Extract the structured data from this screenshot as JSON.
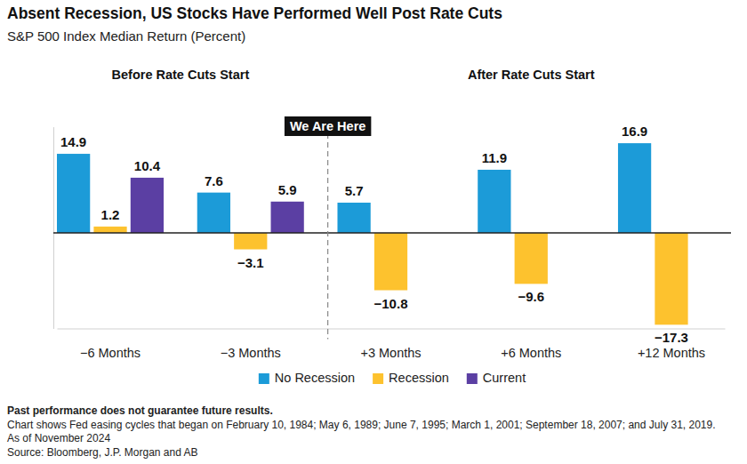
{
  "chart_data": {
    "type": "bar",
    "title": "Absent Recession, US Stocks Have Performed Well Post Rate Cuts",
    "subtitle": "S&P 500 Index Median Return (Percent)",
    "section_labels": [
      "Before Rate Cuts Start",
      "After Rate Cuts Start"
    ],
    "annotation": "We Are Here",
    "categories": [
      "−6 Months",
      "−3 Months",
      "+3 Months",
      "+6 Months",
      "+12 Months"
    ],
    "series": [
      {
        "name": "No Recession",
        "color": "#1c9bd8",
        "values": [
          14.9,
          7.6,
          5.7,
          11.9,
          16.9
        ]
      },
      {
        "name": "Recession",
        "color": "#fdc22e",
        "values": [
          1.2,
          -3.1,
          -10.8,
          -9.6,
          -17.3
        ],
        "value_labels": [
          "1.2",
          "−3.1",
          "−10.8",
          "−9.6",
          "−17.3"
        ]
      },
      {
        "name": "Current",
        "color": "#5b3fa3",
        "values": [
          10.4,
          5.9,
          null,
          null,
          null
        ]
      }
    ],
    "ylim": [
      -18,
      20
    ],
    "yticks": [
      0
    ],
    "grid": true,
    "tick_labels": "x",
    "data_labels": true,
    "legend": "bottom",
    "footnotes": [
      "Past performance does not guarantee future results.",
      "Chart shows Fed easing cycles that began on February 10, 1984; May 6, 1989; June 7, 1995; March 1, 2001; September 18, 2007; and July 31, 2019.",
      "As of November 2024",
      "Source: Bloomberg, J.P. Morgan and AB"
    ]
  }
}
